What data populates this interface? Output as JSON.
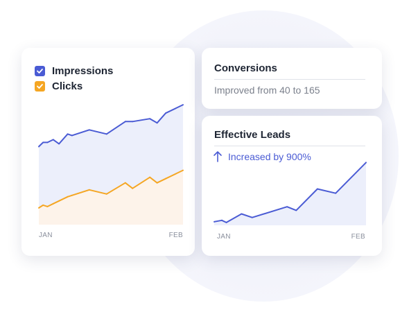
{
  "colors": {
    "impressions": "#4a5bd4",
    "impressions_fill": "#eceffb",
    "clicks": "#f5a623",
    "clicks_fill": "#fdf3ea",
    "leads": "#4a5bd4",
    "leads_fill": "#eceffb"
  },
  "legend": {
    "items": [
      {
        "label": "Impressions",
        "checked": true
      },
      {
        "label": "Clicks",
        "checked": true
      }
    ]
  },
  "conversions": {
    "title": "Conversions",
    "text": "Improved from 40 to 165"
  },
  "leads": {
    "title": "Effective Leads",
    "stat": "Increased by 900%",
    "icon": "arrow-up-icon"
  },
  "chart_data": [
    {
      "type": "area",
      "x": [
        0,
        0.03,
        0.06,
        0.1,
        0.14,
        0.2,
        0.23,
        0.35,
        0.47,
        0.6,
        0.65,
        0.77,
        0.82,
        0.88,
        1.0
      ],
      "categories": [
        "JAN",
        "FEB"
      ],
      "ylim": [
        0,
        100
      ],
      "grid": false,
      "legend_position": "top-left",
      "series": [
        {
          "name": "Impressions",
          "values": [
            56,
            59,
            59,
            61,
            58,
            65,
            64,
            68,
            65,
            74,
            74,
            76,
            73,
            80,
            86
          ]
        },
        {
          "name": "Clicks",
          "values": [
            12,
            14,
            13,
            15,
            17,
            20,
            21,
            25,
            22,
            30,
            26,
            34,
            30,
            33,
            39
          ]
        }
      ]
    },
    {
      "type": "area",
      "x": [
        0,
        0.05,
        0.08,
        0.18,
        0.25,
        0.48,
        0.54,
        0.68,
        0.8,
        1.0
      ],
      "categories": [
        "JAN",
        "FEB"
      ],
      "ylim": [
        0,
        100
      ],
      "grid": false,
      "series": [
        {
          "values": [
            5,
            7,
            4,
            16,
            11,
            26,
            21,
            51,
            45,
            88
          ]
        }
      ]
    }
  ]
}
